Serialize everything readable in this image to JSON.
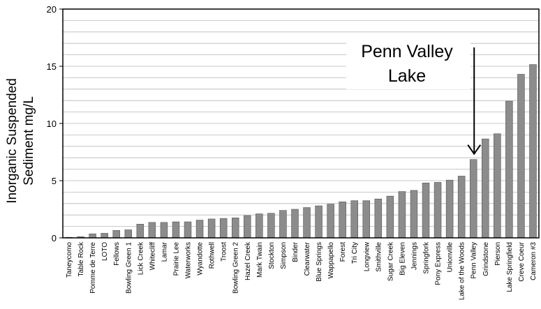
{
  "chart_data": {
    "type": "bar",
    "title": "",
    "xlabel": "",
    "ylabel_lines": [
      "Inorganic Suspended",
      "Sediment mg/L"
    ],
    "ylim": [
      0,
      20
    ],
    "yticks": [
      0,
      5,
      10,
      15,
      20
    ],
    "grid": true,
    "categories": [
      "Taneycomo",
      "Table Rock",
      "Pomme de Terre",
      "LOTO",
      "Fellows",
      "Bowling Green 1",
      "Lick Creek",
      "Whitecliff",
      "Lamar",
      "Prairie Lee",
      "Waterworks",
      "Wyandotte",
      "Rothwell",
      "Troost",
      "Bowling Green 2",
      "Hazel Creek",
      "Mark Twain",
      "Stockton",
      "Simpson",
      "Binder",
      "Clearwater",
      "Blue Springs",
      "Wappapello",
      "Forest",
      "Tri City",
      "Longview",
      "Smithville",
      "Sugar Creek",
      "Big Eleven",
      "Jennings",
      "Springfork",
      "Pony Express",
      "Unionville",
      "Lake of the Woods",
      "Penn Valley",
      "Grindstone",
      "Pierson",
      "Lake Springfield",
      "Creve Coeur",
      "Cameron #3"
    ],
    "values": [
      0.05,
      0.1,
      0.35,
      0.4,
      0.65,
      0.7,
      1.2,
      1.35,
      1.35,
      1.4,
      1.4,
      1.55,
      1.65,
      1.7,
      1.75,
      1.95,
      2.1,
      2.15,
      2.4,
      2.5,
      2.65,
      2.8,
      2.95,
      3.15,
      3.25,
      3.25,
      3.4,
      3.65,
      4.05,
      4.15,
      4.8,
      4.85,
      5.05,
      5.4,
      6.85,
      8.65,
      9.1,
      11.95,
      14.3,
      15.15
    ],
    "bar_color": "#8c8c8c",
    "annotation": {
      "lines": [
        "Penn Valley",
        "Lake"
      ],
      "target_category": "Penn Valley"
    }
  }
}
